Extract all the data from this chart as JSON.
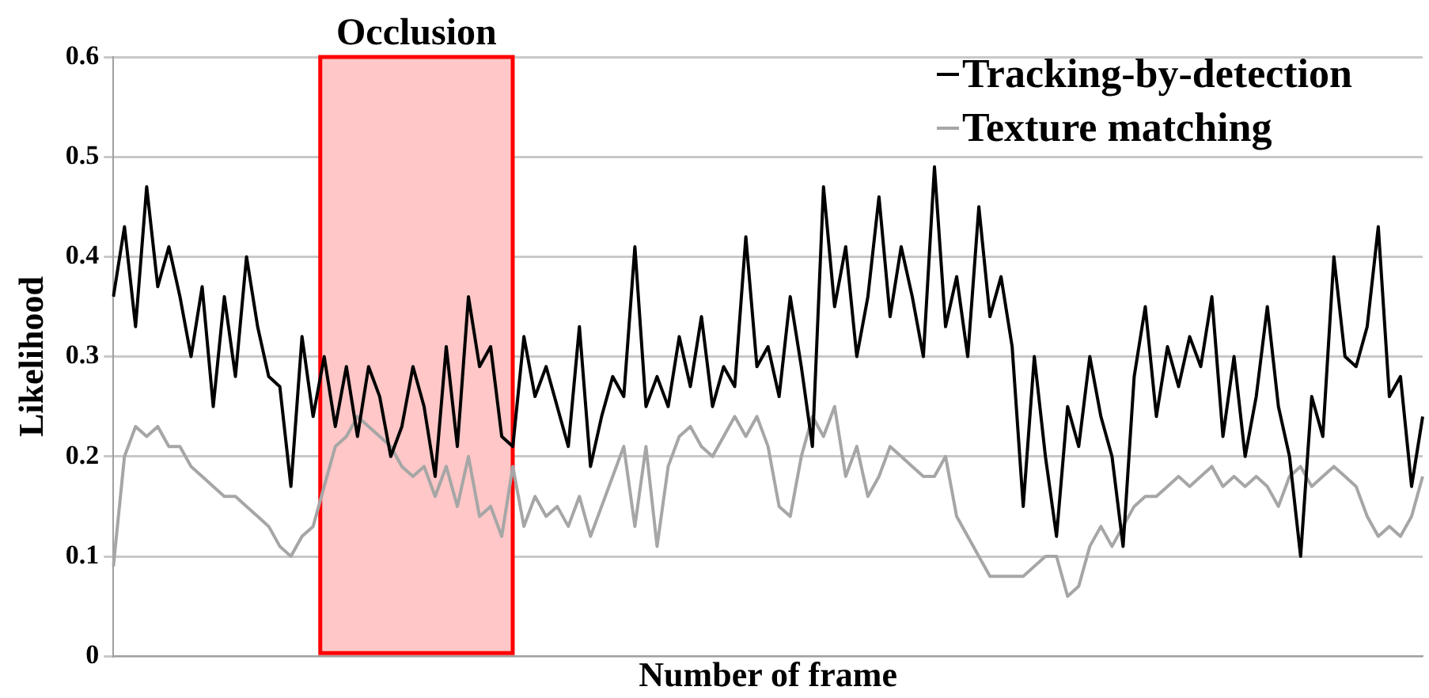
{
  "chart_data": {
    "type": "line",
    "xlabel": "Number of frame",
    "ylabel": "Likelihood",
    "categories": [
      null,
      null,
      null,
      null,
      null,
      null,
      null,
      null,
      null,
      null,
      null,
      null,
      null,
      null,
      null,
      null,
      null,
      null,
      null,
      null,
      null,
      null,
      null,
      null,
      null,
      null,
      null,
      null,
      null,
      null,
      null,
      null,
      null,
      null,
      null,
      null,
      null,
      null,
      null,
      null,
      null,
      null,
      null,
      null,
      null,
      null,
      null,
      null,
      null,
      null,
      null,
      null,
      null,
      null,
      null,
      null,
      null,
      null,
      null,
      null,
      null,
      null,
      null,
      null,
      null,
      null,
      null,
      null,
      null,
      null,
      null,
      null,
      null,
      null,
      null,
      null,
      null,
      null,
      null,
      null,
      null,
      null,
      null,
      null,
      null,
      null,
      null,
      null,
      null,
      null,
      null,
      null,
      null,
      null,
      null,
      null,
      null,
      null,
      null,
      null,
      null,
      null,
      null,
      null,
      null,
      null,
      null,
      null,
      null,
      null,
      null,
      null,
      null,
      null,
      null,
      null,
      null,
      null,
      null
    ],
    "series": [
      {
        "name": "Tracking-by-detection",
        "color": "#000000",
        "values": [
          0.36,
          0.43,
          0.33,
          0.47,
          0.37,
          0.41,
          0.36,
          0.3,
          0.37,
          0.25,
          0.36,
          0.28,
          0.4,
          0.33,
          0.28,
          0.27,
          0.17,
          0.32,
          0.24,
          0.3,
          0.23,
          0.29,
          0.22,
          0.29,
          0.26,
          0.2,
          0.23,
          0.29,
          0.25,
          0.18,
          0.31,
          0.21,
          0.36,
          0.29,
          0.31,
          0.22,
          0.21,
          0.32,
          0.26,
          0.29,
          0.25,
          0.21,
          0.33,
          0.19,
          0.24,
          0.28,
          0.26,
          0.41,
          0.25,
          0.28,
          0.25,
          0.32,
          0.27,
          0.34,
          0.25,
          0.29,
          0.27,
          0.42,
          0.29,
          0.31,
          0.26,
          0.36,
          0.29,
          0.21,
          0.47,
          0.35,
          0.41,
          0.3,
          0.36,
          0.46,
          0.34,
          0.41,
          0.36,
          0.3,
          0.49,
          0.33,
          0.38,
          0.3,
          0.45,
          0.34,
          0.38,
          0.31,
          0.15,
          0.3,
          0.2,
          0.12,
          0.25,
          0.21,
          0.3,
          0.24,
          0.2,
          0.11,
          0.28,
          0.35,
          0.24,
          0.31,
          0.27,
          0.32,
          0.29,
          0.36,
          0.22,
          0.3,
          0.2,
          0.26,
          0.35,
          0.25,
          0.2,
          0.1,
          0.26,
          0.22,
          0.4,
          0.3,
          0.29,
          0.33,
          0.43,
          0.26,
          0.28,
          0.17,
          0.24
        ]
      },
      {
        "name": "Texture matching",
        "color": "#a6a6a6",
        "values": [
          0.09,
          0.2,
          0.23,
          0.22,
          0.23,
          0.21,
          0.21,
          0.19,
          0.18,
          0.17,
          0.16,
          0.16,
          0.15,
          0.14,
          0.13,
          0.11,
          0.1,
          0.12,
          0.13,
          0.17,
          0.21,
          0.22,
          0.24,
          0.23,
          0.22,
          0.21,
          0.19,
          0.18,
          0.19,
          0.16,
          0.19,
          0.15,
          0.2,
          0.14,
          0.15,
          0.12,
          0.19,
          0.13,
          0.16,
          0.14,
          0.15,
          0.13,
          0.16,
          0.12,
          0.15,
          0.18,
          0.21,
          0.13,
          0.21,
          0.11,
          0.19,
          0.22,
          0.23,
          0.21,
          0.2,
          0.22,
          0.24,
          0.22,
          0.24,
          0.21,
          0.15,
          0.14,
          0.2,
          0.24,
          0.22,
          0.25,
          0.18,
          0.21,
          0.16,
          0.18,
          0.21,
          0.2,
          0.19,
          0.18,
          0.18,
          0.2,
          0.14,
          0.12,
          0.1,
          0.08,
          0.08,
          0.08,
          0.08,
          0.09,
          0.1,
          0.1,
          0.06,
          0.07,
          0.11,
          0.13,
          0.11,
          0.13,
          0.15,
          0.16,
          0.16,
          0.17,
          0.18,
          0.17,
          0.18,
          0.19,
          0.17,
          0.18,
          0.17,
          0.18,
          0.17,
          0.15,
          0.18,
          0.19,
          0.17,
          0.18,
          0.19,
          0.18,
          0.17,
          0.14,
          0.12,
          0.13,
          0.12,
          0.14,
          0.18
        ]
      }
    ],
    "ylim": [
      0,
      0.6
    ],
    "yticks": [
      0,
      0.1,
      0.2,
      0.3,
      0.4,
      0.5,
      0.6
    ],
    "grid": "y",
    "legend": "top right",
    "annotations": [
      "Occlusion"
    ]
  }
}
